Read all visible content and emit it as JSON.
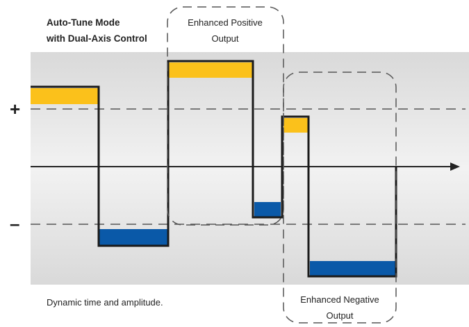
{
  "title": {
    "line1": "Auto-Tune Mode",
    "line2": "with Dual-Axis Control"
  },
  "signs": {
    "plus": "+",
    "minus": "–"
  },
  "boxes": {
    "positive": {
      "line1": "Enhanced Positive",
      "line2": "Output"
    },
    "negative": {
      "line1": "Enhanced Negative",
      "line2": "Output"
    }
  },
  "caption": "Dynamic time and amplitude.",
  "colors": {
    "band": "#e6e6e6",
    "waveform": "#1a1a1a",
    "positive_fill": "#fbc11b",
    "negative_fill": "#0a59a8",
    "dashed": "#555555",
    "axis": "#222222"
  }
}
